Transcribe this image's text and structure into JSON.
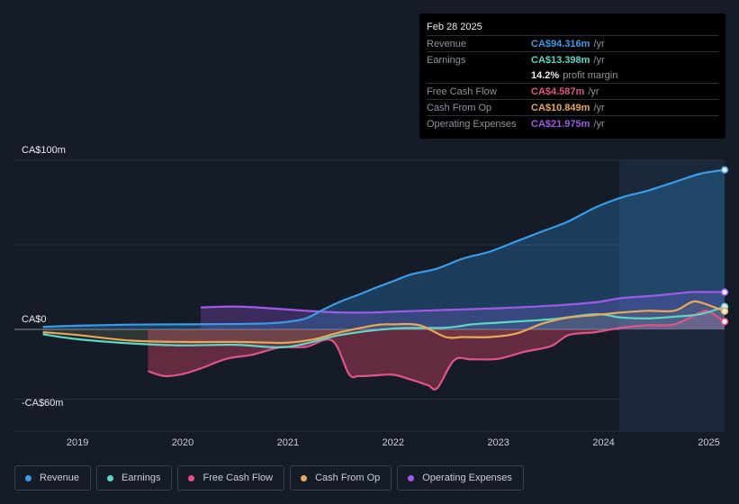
{
  "tooltip": {
    "date": "Feb 28 2025",
    "rows": [
      {
        "label": "Revenue",
        "value": "CA$94.316m",
        "unit": "/yr",
        "color": "#3b9be6"
      },
      {
        "label": "Earnings",
        "value": "CA$13.398m",
        "unit": "/yr",
        "color": "#5fd6c4"
      },
      {
        "label": "",
        "value": "14.2%",
        "unit": "profit margin",
        "color": "#e8eaed"
      },
      {
        "label": "Free Cash Flow",
        "value": "CA$4.587m",
        "unit": "/yr",
        "color": "#e0548a"
      },
      {
        "label": "Cash From Op",
        "value": "CA$10.849m",
        "unit": "/yr",
        "color": "#e8a85a"
      },
      {
        "label": "Operating Expenses",
        "value": "CA$21.975m",
        "unit": "/yr",
        "color": "#a05ae8"
      }
    ]
  },
  "legend": [
    {
      "label": "Revenue",
      "color": "#3b9be6"
    },
    {
      "label": "Earnings",
      "color": "#5fd6c4"
    },
    {
      "label": "Free Cash Flow",
      "color": "#e0548a"
    },
    {
      "label": "Cash From Op",
      "color": "#e8a85a"
    },
    {
      "label": "Operating Expenses",
      "color": "#a05ae8"
    }
  ],
  "chart_data": {
    "type": "line",
    "y_unit": "CA$ millions",
    "ylim": [
      -60,
      100
    ],
    "y_labels": [
      {
        "value": 100,
        "text": "CA$100m"
      },
      {
        "value": 0,
        "text": "CA$0"
      },
      {
        "value": -60,
        "text": "-CA$60m"
      }
    ],
    "xlim": [
      2018.4,
      2025.15
    ],
    "x_ticks": [
      {
        "value": 2019,
        "text": "2019"
      },
      {
        "value": 2020,
        "text": "2020"
      },
      {
        "value": 2021,
        "text": "2021"
      },
      {
        "value": 2022,
        "text": "2022"
      },
      {
        "value": 2023,
        "text": "2023"
      },
      {
        "value": 2024,
        "text": "2024"
      },
      {
        "value": 2025,
        "text": "2025"
      }
    ],
    "highlight_start": 2024.16,
    "series": [
      {
        "name": "Revenue",
        "color": "#3b9be6",
        "x": [
          2018.67,
          2019.0,
          2019.5,
          2020.0,
          2020.5,
          2020.83,
          2021.0,
          2021.17,
          2021.33,
          2021.5,
          2021.67,
          2021.83,
          2022.0,
          2022.17,
          2022.42,
          2022.67,
          2022.92,
          2023.17,
          2023.42,
          2023.67,
          2023.92,
          2024.17,
          2024.42,
          2024.67,
          2024.92,
          2025.15
        ],
        "y": [
          1.5,
          2.2,
          2.8,
          3.0,
          3.2,
          3.6,
          4.5,
          6.5,
          11.5,
          16.5,
          20.5,
          24.5,
          28.5,
          32.5,
          36.0,
          42.0,
          46.0,
          52.0,
          58.0,
          64.0,
          72.0,
          78.0,
          82.0,
          87.0,
          92.0,
          94.3
        ]
      },
      {
        "name": "Earnings",
        "color": "#5fd6c4",
        "x": [
          2018.67,
          2019.0,
          2019.5,
          2020.0,
          2020.5,
          2021.0,
          2021.5,
          2022.0,
          2022.5,
          2022.75,
          2023.0,
          2023.5,
          2023.92,
          2024.17,
          2024.42,
          2024.67,
          2024.92,
          2025.15
        ],
        "y": [
          -3.5,
          -7.0,
          -10.0,
          -11.5,
          -11.0,
          -12.5,
          -4.0,
          0.5,
          1.0,
          3.0,
          4.0,
          6.0,
          9.0,
          7.0,
          6.5,
          7.5,
          9.0,
          13.4
        ]
      },
      {
        "name": "Free Cash Flow",
        "color": "#e0548a",
        "x": [
          2019.67,
          2019.83,
          2020.0,
          2020.17,
          2020.42,
          2020.67,
          2020.92,
          2021.17,
          2021.42,
          2021.58,
          2021.67,
          2021.83,
          2022.0,
          2022.17,
          2022.33,
          2022.42,
          2022.58,
          2022.75,
          2023.0,
          2023.25,
          2023.5,
          2023.67,
          2023.92,
          2024.17,
          2024.42,
          2024.67,
          2024.92,
          2025.0,
          2025.15
        ],
        "y": [
          -30.0,
          -33.5,
          -32.0,
          -28.0,
          -21.0,
          -18.0,
          -13.0,
          -12.5,
          -8.0,
          -32.0,
          -33.5,
          -33.0,
          -32.5,
          -36.0,
          -40.0,
          -42.0,
          -22.0,
          -21.5,
          -21.0,
          -16.0,
          -12.0,
          -4.0,
          -2.0,
          1.0,
          2.5,
          3.0,
          10.0,
          10.5,
          4.6
        ]
      },
      {
        "name": "Cash From Op",
        "color": "#e8a85a",
        "x": [
          2018.67,
          2019.0,
          2019.5,
          2020.0,
          2020.5,
          2020.83,
          2021.0,
          2021.25,
          2021.5,
          2021.83,
          2022.0,
          2022.25,
          2022.5,
          2022.67,
          2022.92,
          2023.17,
          2023.42,
          2023.67,
          2023.92,
          2024.17,
          2024.42,
          2024.67,
          2024.83,
          2024.92,
          2025.15
        ],
        "y": [
          -2.0,
          -4.0,
          -8.0,
          -9.0,
          -9.0,
          -9.5,
          -9.5,
          -7.0,
          -2.0,
          2.5,
          3.0,
          2.5,
          -5.5,
          -5.5,
          -5.5,
          -3.0,
          3.5,
          7.0,
          8.5,
          10.0,
          11.0,
          11.0,
          16.0,
          16.0,
          10.8
        ]
      },
      {
        "name": "Operating Expenses",
        "color": "#a05ae8",
        "x": [
          2020.17,
          2020.5,
          2020.83,
          2021.17,
          2021.5,
          2021.83,
          2022.0,
          2022.5,
          2023.0,
          2023.5,
          2023.92,
          2024.17,
          2024.5,
          2024.83,
          2025.15
        ],
        "y": [
          13.0,
          13.5,
          12.5,
          11.0,
          10.0,
          10.0,
          10.5,
          11.5,
          12.5,
          14.0,
          16.0,
          18.5,
          20.0,
          22.0,
          22.0
        ]
      }
    ]
  }
}
